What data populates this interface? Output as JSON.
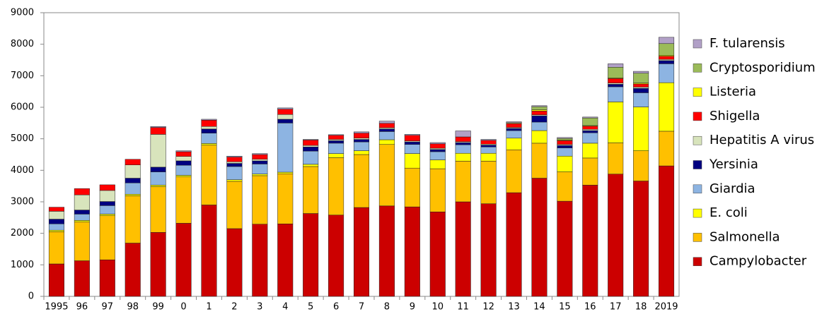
{
  "chart_data": {
    "type": "stacked_bar",
    "categories": [
      "1995",
      "96",
      "97",
      "98",
      "99",
      "0",
      "1",
      "2",
      "3",
      "4",
      "5",
      "6",
      "7",
      "8",
      "9",
      "10",
      "11",
      "12",
      "13",
      "14",
      "15",
      "16",
      "17",
      "18",
      "2019"
    ],
    "ylim": [
      0,
      9000
    ],
    "yticks": [
      0,
      1000,
      2000,
      3000,
      4000,
      5000,
      6000,
      7000,
      8000,
      9000
    ],
    "series": [
      {
        "name": "Campylobacter",
        "color": "#cc0000",
        "values": [
          1030,
          1130,
          1160,
          1690,
          2030,
          2320,
          2900,
          2150,
          2290,
          2300,
          2630,
          2580,
          2820,
          2870,
          2840,
          2680,
          3000,
          2940,
          3290,
          3750,
          3020,
          3530,
          3880,
          3660,
          4140
        ]
      },
      {
        "name": "Salmonella",
        "color": "#ffc000",
        "values": [
          1020,
          1230,
          1400,
          1500,
          1450,
          1470,
          1900,
          1500,
          1540,
          1590,
          1490,
          1820,
          1680,
          1950,
          1230,
          1370,
          1290,
          1350,
          1360,
          1110,
          930,
          860,
          990,
          960,
          1100
        ]
      },
      {
        "name": "E. coli",
        "color": "#ffff00",
        "values": [
          50,
          50,
          50,
          50,
          50,
          50,
          50,
          50,
          50,
          50,
          70,
          130,
          120,
          150,
          460,
          280,
          250,
          250,
          370,
          400,
          500,
          470,
          1300,
          1390,
          1540
        ]
      },
      {
        "name": "Giardia",
        "color": "#8db4e2",
        "values": [
          200,
          200,
          270,
          360,
          420,
          320,
          330,
          420,
          320,
          1560,
          420,
          330,
          280,
          260,
          290,
          260,
          270,
          200,
          240,
          270,
          260,
          330,
          480,
          450,
          600
        ]
      },
      {
        "name": "Yersinia",
        "color": "#000080",
        "values": [
          150,
          130,
          130,
          150,
          150,
          140,
          130,
          100,
          100,
          120,
          130,
          80,
          80,
          80,
          80,
          70,
          70,
          60,
          70,
          200,
          80,
          70,
          80,
          140,
          100
        ]
      },
      {
        "name": "Hepatitis A virus",
        "color": "#d8e4bc",
        "values": [
          250,
          480,
          350,
          420,
          1040,
          140,
          80,
          50,
          50,
          150,
          50,
          40,
          40,
          40,
          30,
          40,
          30,
          30,
          30,
          30,
          30,
          40,
          40,
          40,
          40
        ]
      },
      {
        "name": "Shigella",
        "color": "#ff0000",
        "values": [
          130,
          200,
          180,
          180,
          220,
          150,
          200,
          150,
          150,
          170,
          170,
          130,
          160,
          140,
          180,
          140,
          150,
          120,
          120,
          120,
          120,
          100,
          140,
          100,
          100
        ]
      },
      {
        "name": "Listeria",
        "color": "#ffff00",
        "values": [
          0,
          0,
          0,
          0,
          0,
          0,
          0,
          0,
          0,
          0,
          0,
          0,
          0,
          0,
          0,
          0,
          0,
          0,
          0,
          40,
          20,
          20,
          20,
          30,
          30
        ]
      },
      {
        "name": "Cryptosporidium",
        "color": "#9bbb59",
        "values": [
          0,
          0,
          0,
          0,
          0,
          0,
          0,
          0,
          0,
          0,
          0,
          0,
          0,
          0,
          0,
          0,
          0,
          0,
          30,
          100,
          50,
          240,
          340,
          310,
          370
        ]
      },
      {
        "name": "F. tularensis",
        "color": "#b1a0c7",
        "values": [
          0,
          0,
          0,
          0,
          30,
          30,
          30,
          30,
          30,
          40,
          20,
          20,
          40,
          70,
          30,
          40,
          190,
          30,
          30,
          30,
          30,
          30,
          110,
          60,
          200
        ]
      }
    ]
  }
}
